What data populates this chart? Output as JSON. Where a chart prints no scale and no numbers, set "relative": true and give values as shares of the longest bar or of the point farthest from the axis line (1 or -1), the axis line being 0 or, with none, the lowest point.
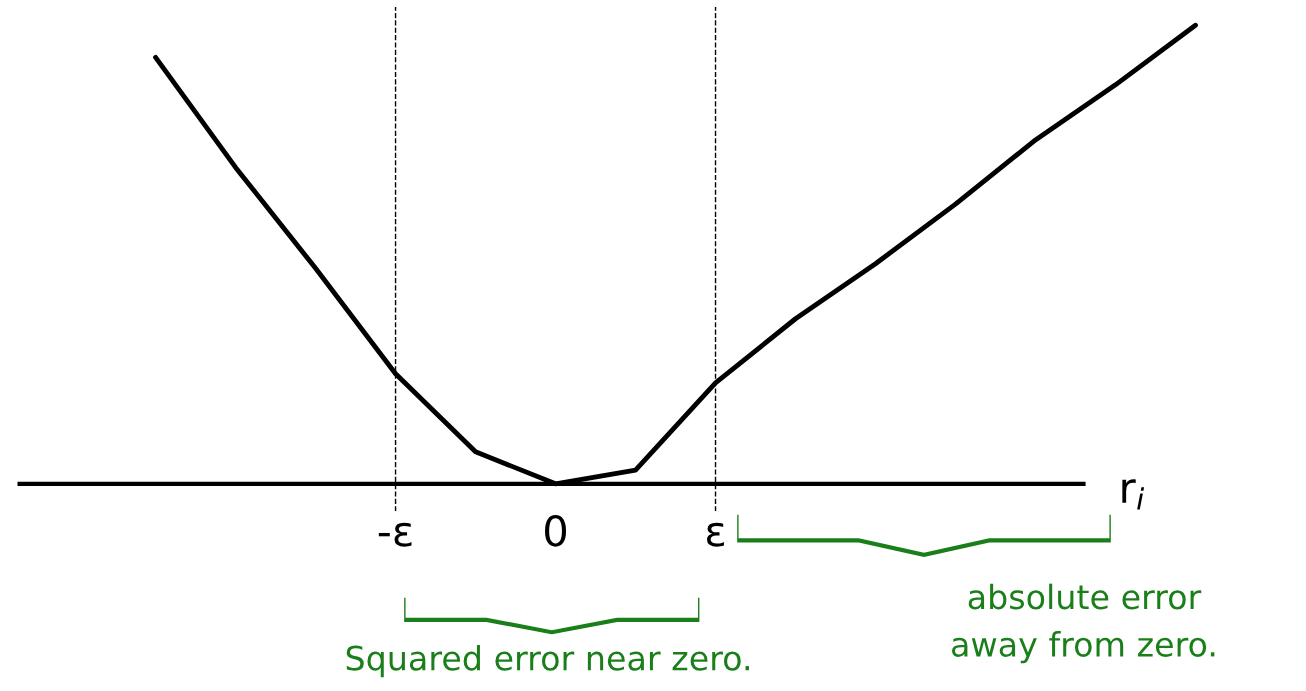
{
  "chart_data": {
    "type": "line",
    "relative": true,
    "xlabel": "r$_{i}$",
    "categories": [
      null,
      null,
      null,
      "-ε",
      null,
      "0",
      null,
      "ε",
      null,
      null,
      null,
      null,
      null,
      null
    ],
    "series": [
      {
        "color": "#000000",
        "values": [
          0.93,
          0.69,
          0.47,
          0.24,
          0.07,
          0,
          0.03,
          0.22,
          0.36,
          0.48,
          0.61,
          0.75,
          0.87,
          1.0
        ]
      }
    ],
    "ref_lines": [
      {
        "axis": "x",
        "value": "-ε",
        "color": "#000000",
        "line_style": "dashed"
      },
      {
        "axis": "x",
        "value": "ε",
        "color": "#000000",
        "line_style": "dashed"
      }
    ],
    "annotations": [
      "Squared error near zero.",
      "absolute error\naway from zero."
    ],
    "grid": false,
    "legend": false,
    "marker": "none",
    "line_style": "solid"
  }
}
